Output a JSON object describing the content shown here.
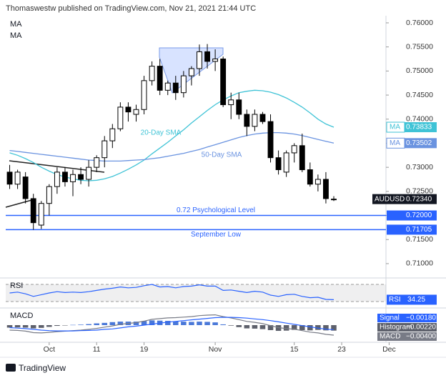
{
  "header": "Thomaswestw published on TradingView.com, Nov 21, 2021 21:44 UTC",
  "footer": "TradingView",
  "chart_data": {
    "type": "candlestick",
    "symbol": "AUDUSD",
    "last_price_label": "0.72340",
    "up_color": "#ffffff",
    "down_color": "#000000",
    "x": [
      0,
      1,
      2,
      3,
      4,
      5,
      6,
      7,
      8,
      9,
      10,
      11,
      12,
      13,
      14,
      15,
      16,
      17,
      18,
      19,
      20,
      21,
      22,
      23,
      24,
      25,
      26,
      27,
      28,
      29,
      30,
      31,
      32,
      33,
      34,
      35,
      36,
      37,
      38,
      39,
      40,
      41
    ],
    "open": [
      0.729,
      0.7265,
      0.728,
      0.7235,
      0.718,
      0.7225,
      0.726,
      0.729,
      0.727,
      0.7285,
      0.7275,
      0.73,
      0.732,
      0.7355,
      0.738,
      0.7425,
      0.741,
      0.742,
      0.748,
      0.751,
      0.746,
      0.7475,
      0.7455,
      0.749,
      0.7505,
      0.754,
      0.752,
      0.7525,
      0.743,
      0.744,
      0.741,
      0.7385,
      0.741,
      0.7395,
      0.732,
      0.729,
      0.733,
      0.7345,
      0.7295,
      0.7265,
      0.7275,
      0.7234
    ],
    "high": [
      0.7305,
      0.7295,
      0.729,
      0.7245,
      0.723,
      0.7265,
      0.73,
      0.73,
      0.7295,
      0.73,
      0.7315,
      0.7325,
      0.7365,
      0.739,
      0.7435,
      0.7435,
      0.743,
      0.749,
      0.752,
      0.7525,
      0.748,
      0.749,
      0.75,
      0.751,
      0.7555,
      0.7556,
      0.7545,
      0.753,
      0.7455,
      0.7455,
      0.742,
      0.742,
      0.7415,
      0.741,
      0.7335,
      0.7335,
      0.735,
      0.737,
      0.731,
      0.7285,
      0.729,
      0.724
    ],
    "low": [
      0.7255,
      0.7255,
      0.7225,
      0.71705,
      0.7172,
      0.72,
      0.7245,
      0.726,
      0.724,
      0.7265,
      0.726,
      0.729,
      0.73,
      0.734,
      0.7375,
      0.7395,
      0.7395,
      0.741,
      0.747,
      0.745,
      0.745,
      0.744,
      0.7445,
      0.747,
      0.749,
      0.7505,
      0.75,
      0.7425,
      0.74,
      0.74,
      0.7365,
      0.7375,
      0.739,
      0.731,
      0.7285,
      0.728,
      0.731,
      0.729,
      0.726,
      0.725,
      0.7225,
      0.723
    ],
    "close": [
      0.7265,
      0.729,
      0.7235,
      0.7185,
      0.7225,
      0.726,
      0.729,
      0.727,
      0.7285,
      0.7275,
      0.73,
      0.732,
      0.7355,
      0.738,
      0.7425,
      0.7415,
      0.742,
      0.748,
      0.751,
      0.746,
      0.7475,
      0.7455,
      0.749,
      0.7505,
      0.754,
      0.752,
      0.7525,
      0.743,
      0.744,
      0.741,
      0.7385,
      0.741,
      0.7395,
      0.732,
      0.7295,
      0.733,
      0.7345,
      0.7295,
      0.7265,
      0.7275,
      0.7235,
      0.7234
    ],
    "series": [
      {
        "name": "MA",
        "label": "20-Day SMA",
        "color": "#3fc3d6",
        "value_label": "0.73833",
        "values": [
          0.733,
          0.7325,
          0.7318,
          0.731,
          0.73,
          0.7292,
          0.7285,
          0.728,
          0.7276,
          0.7273,
          0.7272,
          0.7273,
          0.7276,
          0.7281,
          0.7288,
          0.7296,
          0.7305,
          0.7315,
          0.7328,
          0.734,
          0.7352,
          0.7365,
          0.7378,
          0.7392,
          0.7405,
          0.7418,
          0.743,
          0.744,
          0.7448,
          0.7455,
          0.7458,
          0.746,
          0.7459,
          0.7456,
          0.7451,
          0.7444,
          0.7435,
          0.7425,
          0.7413,
          0.74,
          0.739,
          0.73833
        ]
      },
      {
        "name": "MA",
        "label": "50-Day SMA",
        "color": "#6a93e0",
        "value_label": "0.73502",
        "values": [
          0.7335,
          0.7333,
          0.7331,
          0.7329,
          0.7327,
          0.7325,
          0.7323,
          0.7321,
          0.7319,
          0.7317,
          0.7315,
          0.7314,
          0.7313,
          0.7313,
          0.7313,
          0.7314,
          0.7315,
          0.7316,
          0.7318,
          0.732,
          0.7323,
          0.7326,
          0.7329,
          0.7333,
          0.7337,
          0.7342,
          0.7347,
          0.7352,
          0.7357,
          0.7362,
          0.7366,
          0.7369,
          0.7371,
          0.7372,
          0.7372,
          0.7371,
          0.7369,
          0.7366,
          0.7362,
          0.7358,
          0.7354,
          0.73502
        ]
      }
    ],
    "hlines": [
      {
        "value": 0.72,
        "label": "0.72000",
        "name": "0.72 Psychological Level",
        "color": "#2962ff"
      },
      {
        "value": 0.71705,
        "label": "0.71705",
        "name": "September Low",
        "color": "#2962ff"
      }
    ],
    "ylim": [
      0.70717,
      0.76148
    ],
    "yticks": [
      {
        "value": 0.76,
        "label": "0.76000"
      },
      {
        "value": 0.755,
        "label": "0.75500"
      },
      {
        "value": 0.75,
        "label": "0.75000"
      },
      {
        "value": 0.745,
        "label": "0.74500"
      },
      {
        "value": 0.74,
        "label": "0.74000"
      },
      {
        "value": 0.735,
        "label": "0.73500"
      },
      {
        "value": 0.73,
        "label": "0.73000"
      },
      {
        "value": 0.725,
        "label": "0.72500"
      },
      {
        "value": 0.72,
        "label": "0.72000"
      },
      {
        "value": 0.715,
        "label": "0.71500"
      },
      {
        "value": 0.71,
        "label": "0.71000"
      }
    ],
    "xlim": [
      -0.5,
      47.6
    ],
    "xticks": [
      {
        "value": 5,
        "label": "Oct"
      },
      {
        "value": 11,
        "label": "11"
      },
      {
        "value": 17,
        "label": "19"
      },
      {
        "value": 26,
        "label": "Nov"
      },
      {
        "value": 36,
        "label": "15"
      },
      {
        "value": 42,
        "label": "23"
      },
      {
        "value": 48,
        "label": "Dec"
      }
    ],
    "rsi": {
      "name": "RSI",
      "color": "#2962ff",
      "value_label": "34.25",
      "ylim": [
        20,
        80
      ],
      "levels": [
        70,
        30
      ],
      "values": [
        50,
        52,
        48,
        42,
        46,
        50,
        53,
        51,
        52,
        51,
        53,
        56,
        59,
        61,
        64,
        62,
        63,
        67,
        70,
        64,
        65,
        62,
        65,
        66,
        69,
        66,
        66,
        56,
        57,
        54,
        51,
        54,
        52,
        45,
        42,
        46,
        47,
        42,
        39,
        40,
        35,
        34.25
      ]
    },
    "macd": {
      "name": "MACD",
      "ylim": [
        -0.006,
        0.006
      ],
      "macd": {
        "name": "MACD",
        "color": "#787b86",
        "value_label": "−0.00400",
        "values": [
          -0.002,
          -0.0021,
          -0.0024,
          -0.003,
          -0.0031,
          -0.0029,
          -0.0026,
          -0.0024,
          -0.0022,
          -0.002,
          -0.0017,
          -0.0013,
          -0.0008,
          -0.0003,
          0.0003,
          0.0007,
          0.001,
          0.0016,
          0.0023,
          0.0026,
          0.0029,
          0.003,
          0.0032,
          0.0034,
          0.0038,
          0.004,
          0.0041,
          0.0034,
          0.0029,
          0.0022,
          0.0015,
          0.0011,
          0.0006,
          -0.0002,
          -0.001,
          -0.0014,
          -0.0016,
          -0.0022,
          -0.0028,
          -0.0031,
          -0.0037,
          -0.004
        ]
      },
      "signal": {
        "name": "Signal",
        "color": "#2962ff",
        "value_label": "−0.00180",
        "values": [
          -0.001,
          -0.0012,
          -0.0014,
          -0.0017,
          -0.002,
          -0.0022,
          -0.0023,
          -0.0023,
          -0.0023,
          -0.0022,
          -0.0021,
          -0.002,
          -0.0017,
          -0.0015,
          -0.0011,
          -0.0007,
          -0.0004,
          0.0,
          0.0004,
          0.0008,
          0.0012,
          0.0015,
          0.0018,
          0.0021,
          0.0024,
          0.0027,
          0.003,
          0.0031,
          0.0031,
          0.003,
          0.0028,
          0.0025,
          0.0022,
          0.0018,
          0.0013,
          0.0008,
          0.0003,
          -0.0002,
          -0.0007,
          -0.0012,
          -0.0016,
          -0.0018
        ]
      },
      "histogram": {
        "name": "Histogram",
        "positive_color": "#4a78d8",
        "negative_color": "#5d606b",
        "value_label": "−0.00220",
        "values": [
          -0.001,
          -0.0009,
          -0.001,
          -0.0013,
          -0.0011,
          -0.0007,
          -0.0003,
          -0.0001,
          0.0001,
          0.0002,
          0.0004,
          0.0007,
          0.0009,
          0.0012,
          0.0014,
          0.0014,
          0.0014,
          0.0016,
          0.0019,
          0.0018,
          0.0017,
          0.0015,
          0.0014,
          0.0013,
          0.0014,
          0.0013,
          0.0011,
          0.0003,
          -0.0002,
          -0.0008,
          -0.0013,
          -0.0014,
          -0.0016,
          -0.002,
          -0.0023,
          -0.0022,
          -0.0019,
          -0.002,
          -0.0021,
          -0.0019,
          -0.0021,
          -0.0022
        ]
      }
    }
  }
}
